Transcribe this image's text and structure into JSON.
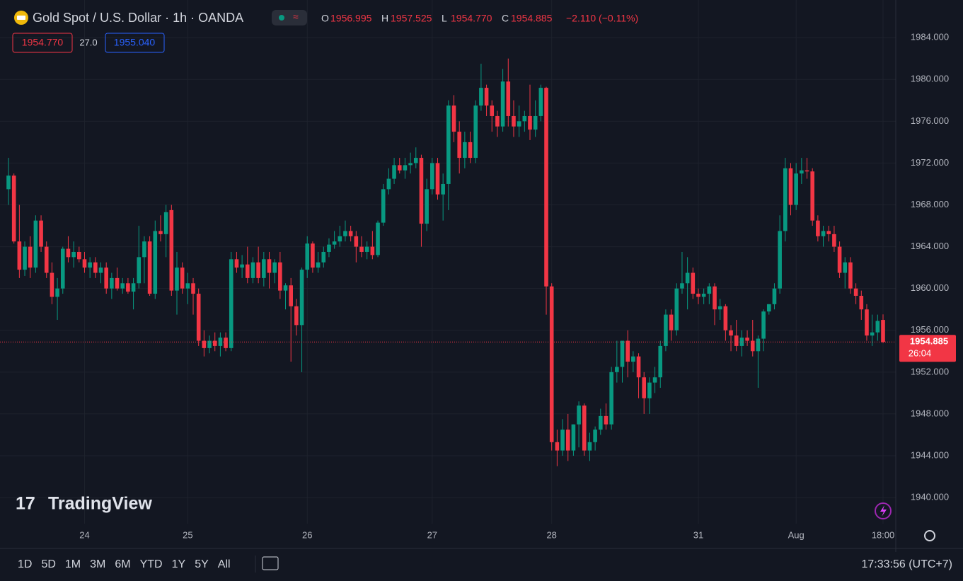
{
  "chart_data": {
    "type": "candlestick",
    "header": {
      "title": "Gold Spot / U.S. Dollar · 1h · OANDA",
      "ohlc": [
        {
          "key": "O",
          "text": "1956.995"
        },
        {
          "key": "H",
          "text": "1957.525"
        },
        {
          "key": "L",
          "text": "1954.770"
        },
        {
          "key": "C",
          "text": "1954.885"
        }
      ],
      "change": "−2.110 (−0.11%)",
      "bid": "1954.770",
      "spread": "27.0",
      "ask": "1955.040"
    },
    "countdown": "26:04",
    "up_color": "#089981",
    "down_color": "#f23645",
    "ylim": [
      1937.5,
      1987.6
    ],
    "yticks": [
      {
        "value": 1940,
        "label": "1940.000"
      },
      {
        "value": 1944,
        "label": "1944.000"
      },
      {
        "value": 1948,
        "label": "1948.000"
      },
      {
        "value": 1952,
        "label": "1952.000"
      },
      {
        "value": 1956,
        "label": "1956.000"
      },
      {
        "value": 1960,
        "label": "1960.000"
      },
      {
        "value": 1964,
        "label": "1964.000"
      },
      {
        "value": 1968,
        "label": "1968.000"
      },
      {
        "value": 1972,
        "label": "1972.000"
      },
      {
        "value": 1976,
        "label": "1976.000"
      },
      {
        "value": 1980,
        "label": "1980.000"
      },
      {
        "value": 1984,
        "label": "1984.000"
      }
    ],
    "grid": true,
    "date_labels": [
      {
        "index": 14,
        "label": "24"
      },
      {
        "index": 33,
        "label": "25"
      },
      {
        "index": 55,
        "label": "26"
      },
      {
        "index": 78,
        "label": "27"
      },
      {
        "index": 100,
        "label": "28"
      },
      {
        "index": 127,
        "label": "31"
      },
      {
        "index": 145,
        "label": "Aug"
      },
      {
        "index": 161,
        "label": "18:00"
      }
    ],
    "candles": [
      [
        1969.5,
        1972.5,
        1968,
        1970.8
      ],
      [
        1970.8,
        1971,
        1964.3,
        1964.5
      ],
      [
        1964.5,
        1968,
        1961,
        1961.8
      ],
      [
        1961.8,
        1964.5,
        1961.2,
        1964
      ],
      [
        1964,
        1965,
        1961,
        1962
      ],
      [
        1962,
        1967,
        1961.5,
        1966.5
      ],
      [
        1966.5,
        1967,
        1963.5,
        1964
      ],
      [
        1964,
        1964.5,
        1961,
        1961.5
      ],
      [
        1961.5,
        1962.5,
        1958.5,
        1959.2
      ],
      [
        1959.2,
        1961,
        1957,
        1960
      ],
      [
        1960,
        1964,
        1959.5,
        1963.8
      ],
      [
        1963.8,
        1965,
        1962.5,
        1963
      ],
      [
        1963,
        1964.5,
        1962,
        1963.5
      ],
      [
        1963.5,
        1964,
        1962.5,
        1962.8
      ],
      [
        1962.8,
        1963.5,
        1961.5,
        1962
      ],
      [
        1962,
        1963,
        1961,
        1962.5
      ],
      [
        1962.5,
        1963,
        1961,
        1961.5
      ],
      [
        1961.5,
        1962.5,
        1960.5,
        1962
      ],
      [
        1962,
        1962.5,
        1959.5,
        1960
      ],
      [
        1960,
        1961.5,
        1959,
        1961
      ],
      [
        1961,
        1962,
        1959.8,
        1960
      ],
      [
        1960,
        1961,
        1959.5,
        1960.5
      ],
      [
        1960.5,
        1961,
        1959.5,
        1959.7
      ],
      [
        1959.7,
        1961,
        1958,
        1960.5
      ],
      [
        1960.5,
        1966,
        1960,
        1963
      ],
      [
        1963,
        1965,
        1960.5,
        1964.5
      ],
      [
        1964.5,
        1965,
        1959.3,
        1959.5
      ],
      [
        1959.5,
        1966.5,
        1959,
        1965.5
      ],
      [
        1965.5,
        1967,
        1964.5,
        1965.2
      ],
      [
        1965.2,
        1968,
        1963,
        1967.3
      ],
      [
        1967.5,
        1968,
        1959.3,
        1959.8
      ],
      [
        1959.8,
        1963.5,
        1957.5,
        1962
      ],
      [
        1962,
        1962.5,
        1959.5,
        1960
      ],
      [
        1960,
        1961.5,
        1958.5,
        1960.5
      ],
      [
        1960.5,
        1961,
        1957.5,
        1959.5
      ],
      [
        1959.5,
        1960,
        1954.5,
        1955
      ],
      [
        1955,
        1956,
        1953.5,
        1954.3
      ],
      [
        1954.3,
        1955.5,
        1953.8,
        1955
      ],
      [
        1955,
        1955.8,
        1954,
        1954.5
      ],
      [
        1954.5,
        1955.8,
        1953.5,
        1955.3
      ],
      [
        1955.3,
        1955.8,
        1954,
        1954.3
      ],
      [
        1954.3,
        1963.5,
        1954,
        1962.8
      ],
      [
        1962.8,
        1963.5,
        1961.5,
        1962
      ],
      [
        1962,
        1963.2,
        1961,
        1962.3
      ],
      [
        1962.3,
        1964,
        1960.5,
        1961
      ],
      [
        1961,
        1963,
        1960.5,
        1962.5
      ],
      [
        1962.5,
        1964,
        1960.5,
        1961
      ],
      [
        1961,
        1963.5,
        1960.2,
        1962.8
      ],
      [
        1962.8,
        1963.5,
        1960,
        1961.5
      ],
      [
        1961.5,
        1962.8,
        1960.5,
        1962.5
      ],
      [
        1962.5,
        1963.5,
        1959,
        1959.8
      ],
      [
        1959.8,
        1960.5,
        1958,
        1960.3
      ],
      [
        1960.3,
        1961,
        1953,
        1958.3
      ],
      [
        1958.3,
        1959,
        1955.5,
        1956.5
      ],
      [
        1956.5,
        1962,
        1952,
        1961.8
      ],
      [
        1961.8,
        1965,
        1961,
        1964.3
      ],
      [
        1964.3,
        1964.5,
        1961.5,
        1962
      ],
      [
        1962,
        1963.5,
        1961.5,
        1962.5
      ],
      [
        1962.5,
        1964,
        1962,
        1963.5
      ],
      [
        1963.5,
        1964.8,
        1963,
        1964.2
      ],
      [
        1964.2,
        1965.5,
        1963.8,
        1964.5
      ],
      [
        1964.5,
        1966,
        1964,
        1965
      ],
      [
        1965,
        1966.5,
        1964.5,
        1965.5
      ],
      [
        1965.5,
        1966,
        1964.5,
        1965
      ],
      [
        1965,
        1965.5,
        1962.5,
        1964
      ],
      [
        1964,
        1965,
        1963,
        1963.5
      ],
      [
        1963.5,
        1964.5,
        1962.8,
        1964
      ],
      [
        1964,
        1965.5,
        1962.8,
        1963.2
      ],
      [
        1963.2,
        1966.5,
        1963,
        1966.3
      ],
      [
        1966.3,
        1970,
        1966,
        1969.5
      ],
      [
        1969.5,
        1971.5,
        1969,
        1970.5
      ],
      [
        1970.5,
        1972.5,
        1970,
        1971.8
      ],
      [
        1971.8,
        1972.5,
        1971,
        1971.3
      ],
      [
        1971.3,
        1972.5,
        1970.5,
        1971.8
      ],
      [
        1971.8,
        1973,
        1971,
        1972
      ],
      [
        1972,
        1973.5,
        1971.5,
        1972.5
      ],
      [
        1972.5,
        1972.8,
        1964,
        1966.2
      ],
      [
        1966.2,
        1970.5,
        1965.5,
        1969.5
      ],
      [
        1969.5,
        1972.5,
        1969,
        1972
      ],
      [
        1972,
        1972.5,
        1968.5,
        1969
      ],
      [
        1969,
        1971,
        1966.5,
        1970
      ],
      [
        1970,
        1978,
        1967.5,
        1977.5
      ],
      [
        1977.5,
        1978.5,
        1974,
        1975
      ],
      [
        1975,
        1976,
        1971,
        1972.5
      ],
      [
        1972.5,
        1975,
        1971.5,
        1974
      ],
      [
        1974,
        1975,
        1972,
        1972.5
      ],
      [
        1972.5,
        1978,
        1972,
        1977.5
      ],
      [
        1977.5,
        1981.5,
        1977,
        1979.2
      ],
      [
        1979.2,
        1979.5,
        1976.5,
        1977.5
      ],
      [
        1977.5,
        1978,
        1975,
        1976.5
      ],
      [
        1976.5,
        1977,
        1974.5,
        1975.5
      ],
      [
        1975.5,
        1981,
        1975,
        1979.8
      ],
      [
        1979.8,
        1982,
        1975.5,
        1976.5
      ],
      [
        1976.5,
        1978,
        1974.5,
        1975.5
      ],
      [
        1975.5,
        1977.5,
        1974.5,
        1976
      ],
      [
        1976,
        1977,
        1975,
        1976.5
      ],
      [
        1976.5,
        1979.5,
        1974.2,
        1975.2
      ],
      [
        1975.2,
        1978,
        1974.5,
        1976.5
      ],
      [
        1976.5,
        1979.5,
        1976,
        1979.2
      ],
      [
        1979.2,
        1979.3,
        1957.5,
        1960.2
      ],
      [
        1960.2,
        1960.5,
        1944.5,
        1945.3
      ],
      [
        1945.3,
        1946.5,
        1943,
        1944.5
      ],
      [
        1944.5,
        1947.5,
        1944,
        1946.5
      ],
      [
        1946.5,
        1948,
        1943.5,
        1944.5
      ],
      [
        1944.5,
        1947,
        1944,
        1947
      ],
      [
        1947,
        1949.2,
        1944.8,
        1948.8
      ],
      [
        1948.8,
        1949,
        1944,
        1944.5
      ],
      [
        1944.5,
        1946.2,
        1943.5,
        1945.3
      ],
      [
        1945.3,
        1946.8,
        1944.5,
        1946.5
      ],
      [
        1946.5,
        1948.5,
        1946,
        1947.8
      ],
      [
        1947.8,
        1949,
        1946.5,
        1947
      ],
      [
        1947,
        1952.5,
        1946.5,
        1952
      ],
      [
        1952,
        1955,
        1951,
        1952.5
      ],
      [
        1952.5,
        1955,
        1951,
        1955
      ],
      [
        1955,
        1956,
        1951.5,
        1953
      ],
      [
        1953,
        1954,
        1952,
        1953.5
      ],
      [
        1953.5,
        1953.8,
        1949.5,
        1951.5
      ],
      [
        1951.5,
        1952,
        1948,
        1949.5
      ],
      [
        1949.5,
        1951.5,
        1948,
        1951
      ],
      [
        1951,
        1952.5,
        1950,
        1951.5
      ],
      [
        1951.5,
        1955,
        1950.5,
        1954.5
      ],
      [
        1954.5,
        1958,
        1954,
        1957.5
      ],
      [
        1957.5,
        1958,
        1955,
        1956
      ],
      [
        1956,
        1960.5,
        1955.5,
        1960
      ],
      [
        1960,
        1963.5,
        1959.5,
        1960.5
      ],
      [
        1960.5,
        1963,
        1958,
        1961.5
      ],
      [
        1961.5,
        1962,
        1959,
        1959.5
      ],
      [
        1959.5,
        1960,
        1958.5,
        1959.2
      ],
      [
        1959.2,
        1960,
        1958.5,
        1959.5
      ],
      [
        1959.5,
        1960.5,
        1958.5,
        1960.2
      ],
      [
        1960.2,
        1960.5,
        1956.5,
        1958
      ],
      [
        1958,
        1959,
        1957,
        1958.3
      ],
      [
        1958.3,
        1958.5,
        1955,
        1956
      ],
      [
        1956,
        1956.5,
        1954,
        1955.5
      ],
      [
        1955.5,
        1957,
        1954,
        1954.5
      ],
      [
        1954.5,
        1956,
        1953.5,
        1955.3
      ],
      [
        1955.3,
        1956,
        1954.5,
        1955
      ],
      [
        1955,
        1957,
        1953.5,
        1954
      ],
      [
        1954,
        1955.5,
        1950.5,
        1955.2
      ],
      [
        1955.2,
        1958,
        1954,
        1957.8
      ],
      [
        1957.8,
        1958.5,
        1957.5,
        1958.5
      ],
      [
        1958.5,
        1960.5,
        1958,
        1960
      ],
      [
        1960,
        1967,
        1959.5,
        1965.5
      ],
      [
        1965.5,
        1972.5,
        1964.5,
        1971.5
      ],
      [
        1971.5,
        1972,
        1967,
        1968
      ],
      [
        1968,
        1972,
        1967.5,
        1971
      ],
      [
        1971,
        1972.5,
        1970,
        1971.3
      ],
      [
        1971.3,
        1972.5,
        1970.5,
        1971.2
      ],
      [
        1971.2,
        1971.5,
        1966,
        1966.5
      ],
      [
        1966.5,
        1967,
        1964.5,
        1965
      ],
      [
        1965,
        1966,
        1964,
        1965.5
      ],
      [
        1965.5,
        1966,
        1964.5,
        1965.2
      ],
      [
        1965.2,
        1966,
        1963.5,
        1964
      ],
      [
        1964,
        1964.5,
        1961,
        1961.5
      ],
      [
        1961.5,
        1963,
        1960,
        1962.5
      ],
      [
        1962.5,
        1963,
        1959.5,
        1960
      ],
      [
        1960,
        1960.5,
        1958.5,
        1959.3
      ],
      [
        1959.3,
        1959.8,
        1957,
        1958
      ],
      [
        1958,
        1958.5,
        1955,
        1955.5
      ],
      [
        1955.5,
        1957.5,
        1954.5,
        1955.8
      ],
      [
        1955.8,
        1957.5,
        1955,
        1956.9
      ],
      [
        1956.995,
        1957.525,
        1954.77,
        1954.885
      ]
    ],
    "last_price_label": "1954.885",
    "watermark": "TradingView",
    "ranges": [
      "1D",
      "5D",
      "1M",
      "3M",
      "6M",
      "YTD",
      "1Y",
      "5Y",
      "All"
    ],
    "clock": "17:33:56 (UTC+7)"
  }
}
